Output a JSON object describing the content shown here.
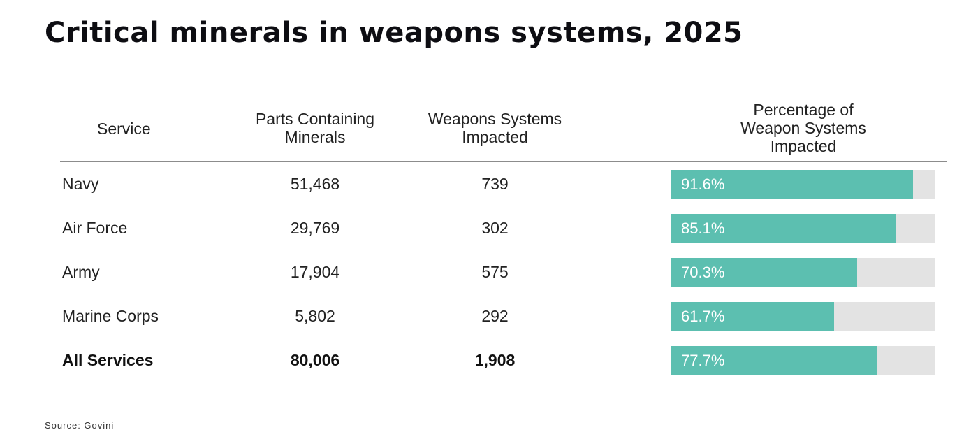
{
  "title": "Critical minerals in weapons systems, 2025",
  "source": "Source: Govini",
  "headers": {
    "service": "Service",
    "parts": [
      "Parts Containing",
      "Minerals"
    ],
    "weapons": [
      "Weapons Systems",
      "Impacted"
    ],
    "percent": [
      "Percentage of",
      "Weapon Systems",
      "Impacted"
    ]
  },
  "colors": {
    "bar": "#5cbfb0",
    "track": "#e3e3e3"
  },
  "chart_data": {
    "type": "table",
    "columns": [
      "Service",
      "Parts Containing Minerals",
      "Weapons Systems Impacted",
      "Percentage of Weapon Systems Impacted"
    ],
    "rows": [
      {
        "service": "Navy",
        "parts": "51,468",
        "weapons": "739",
        "percent_label": "91.6%",
        "percent": 91.6
      },
      {
        "service": "Air Force",
        "parts": "29,769",
        "weapons": "302",
        "percent_label": "85.1%",
        "percent": 85.1
      },
      {
        "service": "Army",
        "parts": "17,904",
        "weapons": "575",
        "percent_label": "70.3%",
        "percent": 70.3
      },
      {
        "service": "Marine Corps",
        "parts": "5,802",
        "weapons": "292",
        "percent_label": "61.7%",
        "percent": 61.7
      },
      {
        "service": "All Services",
        "parts": "80,006",
        "weapons": "1,908",
        "percent_label": "77.7%",
        "percent": 77.7
      }
    ],
    "total_row_index": 4
  }
}
